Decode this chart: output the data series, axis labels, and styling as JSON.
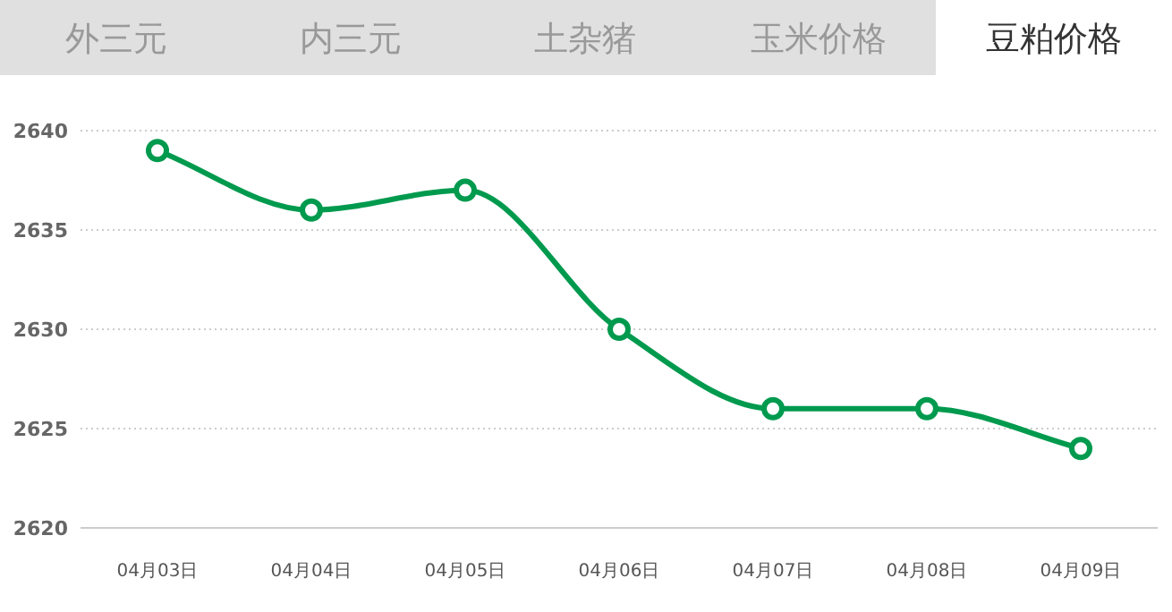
{
  "chart_data": {
    "type": "line",
    "title": "豆粕价格",
    "annotations": [
      "外三元",
      "内三元",
      "土杂猪",
      "玉米价格"
    ],
    "categories": [
      "04月03日",
      "04月04日",
      "04月05日",
      "04月06日",
      "04月07日",
      "04月08日",
      "04月09日"
    ],
    "series": [
      {
        "color": "#009a4e",
        "values": [
          2639,
          2636,
          2637,
          2630,
          2626,
          2626,
          2624
        ]
      }
    ],
    "ylim": [
      2620,
      2640
    ],
    "yticks": [
      2620,
      2625,
      2630,
      2635,
      2640
    ],
    "grid": "y",
    "marker": "circle",
    "line_style": "solid"
  }
}
